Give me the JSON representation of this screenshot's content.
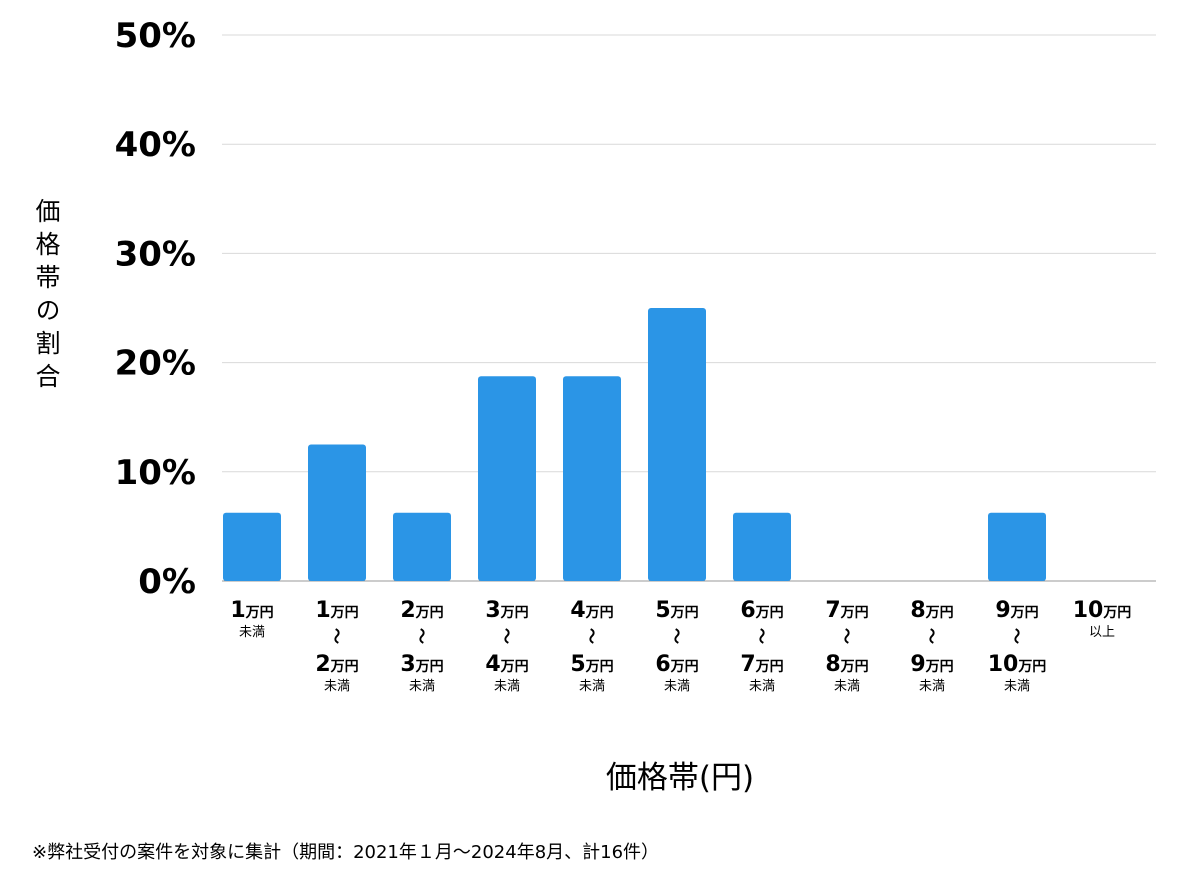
{
  "chart_data": {
    "type": "bar",
    "ylabel": "価格帯の割合",
    "xlabel": "価格帯(円)",
    "ylim": [
      0,
      50
    ],
    "yticks": [
      "0%",
      "10%",
      "20%",
      "30%",
      "40%",
      "50%"
    ],
    "grid": true,
    "bar_color": "#2B95E6",
    "unit": "万円",
    "categories": [
      {
        "from": "1",
        "to": "",
        "suffix": "未満"
      },
      {
        "from": "1",
        "to": "2",
        "suffix": "未満"
      },
      {
        "from": "2",
        "to": "3",
        "suffix": "未満"
      },
      {
        "from": "3",
        "to": "4",
        "suffix": "未満"
      },
      {
        "from": "4",
        "to": "5",
        "suffix": "未満"
      },
      {
        "from": "5",
        "to": "6",
        "suffix": "未満"
      },
      {
        "from": "6",
        "to": "7",
        "suffix": "未満"
      },
      {
        "from": "7",
        "to": "8",
        "suffix": "未満"
      },
      {
        "from": "8",
        "to": "9",
        "suffix": "未満"
      },
      {
        "from": "9",
        "to": "10",
        "suffix": "未満"
      },
      {
        "from": "10",
        "to": "",
        "suffix": "以上"
      }
    ],
    "values": [
      6.25,
      12.5,
      6.25,
      18.75,
      18.75,
      25,
      6.25,
      0,
      0,
      6.25,
      0
    ]
  },
  "footnote": "※弊社受付の案件を対象に集計（期間：2021年１月〜2024年8月、計16件）"
}
